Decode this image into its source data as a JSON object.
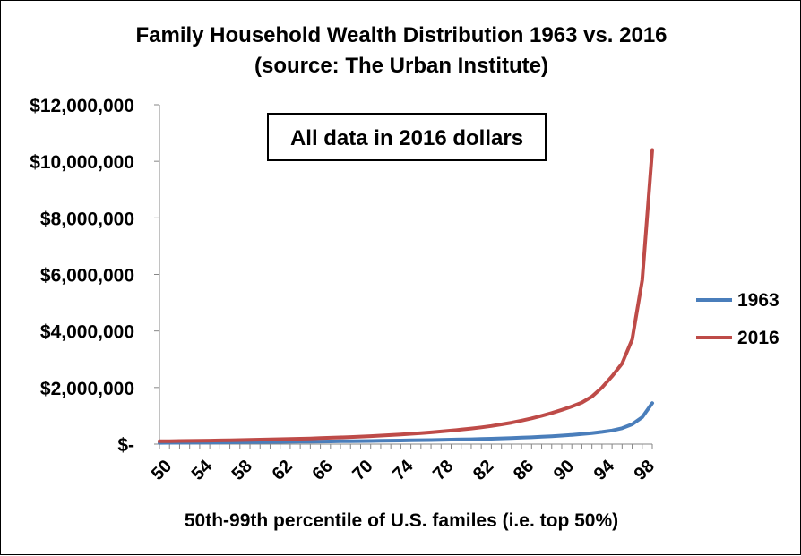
{
  "chart_data": {
    "type": "line",
    "title": "Family Household Wealth Distribution 1963 vs. 2016",
    "subtitle": "(source:  The Urban Institute)",
    "xlabel": "50th-99th percentile of U.S. familes (i.e. top 50%)",
    "ylabel": "",
    "annotation": "All data in 2016 dollars",
    "x": [
      50,
      51,
      52,
      53,
      54,
      55,
      56,
      57,
      58,
      59,
      60,
      61,
      62,
      63,
      64,
      65,
      66,
      67,
      68,
      69,
      70,
      71,
      72,
      73,
      74,
      75,
      76,
      77,
      78,
      79,
      80,
      81,
      82,
      83,
      84,
      85,
      86,
      87,
      88,
      89,
      90,
      91,
      92,
      93,
      94,
      95,
      96,
      97,
      98,
      99
    ],
    "xlim": [
      50,
      99
    ],
    "ylim": [
      0,
      12000000
    ],
    "y_ticks": [
      0,
      2000000,
      4000000,
      6000000,
      8000000,
      10000000,
      12000000
    ],
    "y_tick_labels": [
      "$-",
      "$2,000,000",
      "$4,000,000",
      "$6,000,000",
      "$8,000,000",
      "$10,000,000",
      "$12,000,000"
    ],
    "x_ticks": [
      50,
      54,
      58,
      62,
      66,
      70,
      74,
      78,
      82,
      86,
      90,
      94,
      98
    ],
    "x_tick_labels": [
      "50",
      "54",
      "58",
      "62",
      "66",
      "70",
      "74",
      "78",
      "82",
      "86",
      "90",
      "94",
      "98"
    ],
    "grid": false,
    "legend_position": "right",
    "series": [
      {
        "name": "1963",
        "color": "#4a7ebb",
        "values": [
          45000,
          47000,
          50000,
          52000,
          55000,
          58000,
          60000,
          63000,
          66000,
          69000,
          72000,
          75000,
          78000,
          81000,
          85000,
          88000,
          92000,
          96000,
          100000,
          104000,
          108000,
          112000,
          117000,
          122000,
          127000,
          132000,
          138000,
          144000,
          150000,
          157000,
          164000,
          172000,
          181000,
          191000,
          202000,
          214000,
          227000,
          242000,
          259000,
          278000,
          300000,
          325000,
          355000,
          390000,
          430000,
          480000,
          560000,
          700000,
          950000,
          1450000
        ]
      },
      {
        "name": "2016",
        "color": "#be4b48",
        "values": [
          100000,
          105000,
          110000,
          115000,
          120000,
          125000,
          131000,
          137000,
          143000,
          150000,
          157000,
          165000,
          173000,
          182000,
          191000,
          201000,
          212000,
          224000,
          237000,
          251000,
          266000,
          282000,
          300000,
          320000,
          341000,
          364000,
          389000,
          416000,
          445000,
          477000,
          512000,
          550000,
          592000,
          640000,
          695000,
          758000,
          830000,
          910000,
          1000000,
          1100000,
          1210000,
          1330000,
          1470000,
          1680000,
          2000000,
          2400000,
          2850000,
          3700000,
          5800000,
          10400000
        ]
      }
    ]
  }
}
